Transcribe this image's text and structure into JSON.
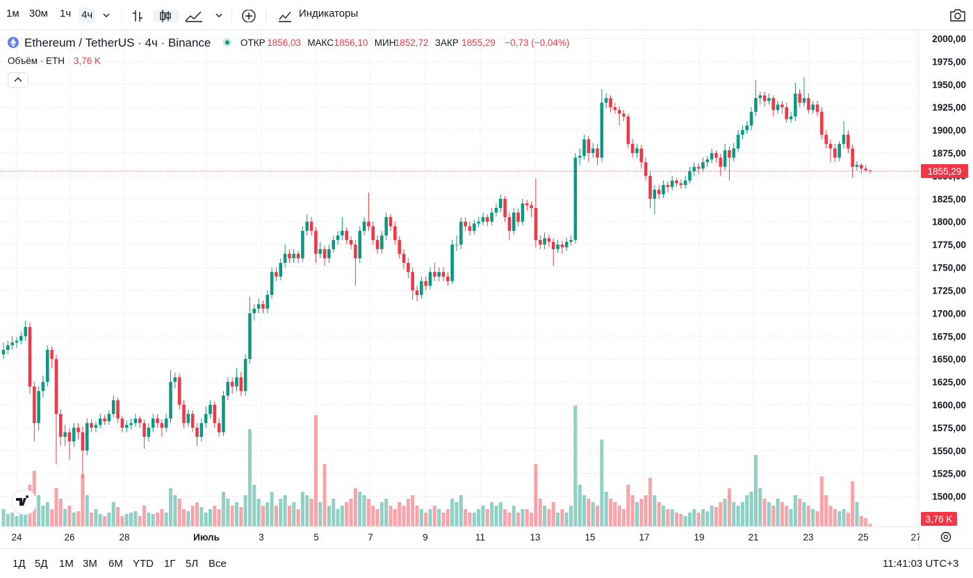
{
  "toolbar": {
    "intervals": [
      "1м",
      "30м",
      "1ч",
      "4ч"
    ],
    "indicators": "Индикаторы"
  },
  "legend": {
    "symbol": "Ethereum / TetherUS · 4ч · Binance",
    "ohlc": [
      {
        "label": "ОТКР",
        "value": "1856,03"
      },
      {
        "label": "МАКС",
        "value": "1856,10"
      },
      {
        "label": "МИН",
        "value": "1852,72"
      },
      {
        "label": "ЗАКР",
        "value": "1855,29"
      }
    ],
    "change": "−0,73 (−0,04%)",
    "volume_title": "Объём · ETH",
    "volume_value": "3,76 K"
  },
  "chart_data": {
    "type": "candlestick",
    "up_color": "#089981",
    "down_color": "#f23645",
    "grid": true,
    "ylim": [
      1467,
      2008
    ],
    "yticks": [
      {
        "value": 1500,
        "label": "1500,00"
      },
      {
        "value": 1525,
        "label": "1525,00"
      },
      {
        "value": 1550,
        "label": "1550,00"
      },
      {
        "value": 1575,
        "label": "1575,00"
      },
      {
        "value": 1600,
        "label": "1600,00"
      },
      {
        "value": 1625,
        "label": "1625,00"
      },
      {
        "value": 1650,
        "label": "1650,00"
      },
      {
        "value": 1675,
        "label": "1675,00"
      },
      {
        "value": 1700,
        "label": "1700,00"
      },
      {
        "value": 1725,
        "label": "1725,00"
      },
      {
        "value": 1750,
        "label": "1750,00"
      },
      {
        "value": 1775,
        "label": "1775,00"
      },
      {
        "value": 1800,
        "label": "1800,00"
      },
      {
        "value": 1825,
        "label": "1825,00"
      },
      {
        "value": 1850,
        "label": "1850,00"
      },
      {
        "value": 1875,
        "label": "1875,00"
      },
      {
        "value": 1900,
        "label": "1900,00"
      },
      {
        "value": 1925,
        "label": "1925,00"
      },
      {
        "value": 1950,
        "label": "1950,00"
      },
      {
        "value": 1975,
        "label": "1975,00"
      },
      {
        "value": 2000,
        "label": "2000,00"
      }
    ],
    "x_labels": [
      "24",
      "26",
      "28",
      "Июль",
      "3",
      "5",
      "7",
      "9",
      "11",
      "13",
      "15",
      "17",
      "19",
      "21",
      "23",
      "25",
      "27"
    ],
    "last_price_label": "1855,29",
    "volume_label": "3,76 K",
    "candles": [
      [
        1655,
        1668,
        1650,
        1660
      ],
      [
        1660,
        1670,
        1655,
        1665
      ],
      [
        1665,
        1675,
        1660,
        1668
      ],
      [
        1668,
        1674,
        1662,
        1670
      ],
      [
        1670,
        1680,
        1666,
        1675
      ],
      [
        1675,
        1692,
        1670,
        1685
      ],
      [
        1685,
        1690,
        1612,
        1620
      ],
      [
        1620,
        1625,
        1560,
        1580
      ],
      [
        1580,
        1620,
        1572,
        1615
      ],
      [
        1615,
        1632,
        1608,
        1625
      ],
      [
        1625,
        1665,
        1620,
        1660
      ],
      [
        1660,
        1664,
        1640,
        1650
      ],
      [
        1650,
        1655,
        1535,
        1590
      ],
      [
        1590,
        1595,
        1555,
        1565
      ],
      [
        1565,
        1578,
        1555,
        1570
      ],
      [
        1570,
        1574,
        1540,
        1560
      ],
      [
        1560,
        1580,
        1554,
        1575
      ],
      [
        1575,
        1580,
        1562,
        1570
      ],
      [
        1570,
        1576,
        1520,
        1550
      ],
      [
        1550,
        1585,
        1545,
        1580
      ],
      [
        1580,
        1584,
        1570,
        1575
      ],
      [
        1575,
        1582,
        1570,
        1578
      ],
      [
        1578,
        1590,
        1574,
        1585
      ],
      [
        1585,
        1589,
        1578,
        1582
      ],
      [
        1582,
        1594,
        1578,
        1590
      ],
      [
        1590,
        1610,
        1586,
        1605
      ],
      [
        1605,
        1608,
        1580,
        1585
      ],
      [
        1585,
        1588,
        1570,
        1575
      ],
      [
        1575,
        1583,
        1570,
        1578
      ],
      [
        1578,
        1585,
        1573,
        1580
      ],
      [
        1580,
        1590,
        1576,
        1585
      ],
      [
        1585,
        1588,
        1575,
        1580
      ],
      [
        1580,
        1584,
        1552,
        1565
      ],
      [
        1565,
        1580,
        1560,
        1575
      ],
      [
        1575,
        1590,
        1570,
        1585
      ],
      [
        1585,
        1590,
        1575,
        1580
      ],
      [
        1580,
        1584,
        1565,
        1575
      ],
      [
        1575,
        1590,
        1570,
        1585
      ],
      [
        1585,
        1638,
        1580,
        1625
      ],
      [
        1625,
        1635,
        1618,
        1630
      ],
      [
        1630,
        1634,
        1595,
        1600
      ],
      [
        1600,
        1605,
        1575,
        1580
      ],
      [
        1580,
        1595,
        1576,
        1590
      ],
      [
        1590,
        1594,
        1570,
        1575
      ],
      [
        1575,
        1580,
        1555,
        1565
      ],
      [
        1565,
        1585,
        1560,
        1580
      ],
      [
        1580,
        1598,
        1575,
        1590
      ],
      [
        1590,
        1605,
        1585,
        1600
      ],
      [
        1600,
        1604,
        1575,
        1580
      ],
      [
        1580,
        1585,
        1565,
        1570
      ],
      [
        1570,
        1615,
        1566,
        1610
      ],
      [
        1610,
        1630,
        1605,
        1625
      ],
      [
        1625,
        1630,
        1612,
        1620
      ],
      [
        1620,
        1640,
        1615,
        1630
      ],
      [
        1630,
        1636,
        1610,
        1615
      ],
      [
        1615,
        1655,
        1610,
        1650
      ],
      [
        1650,
        1718,
        1645,
        1700
      ],
      [
        1700,
        1710,
        1692,
        1705
      ],
      [
        1705,
        1716,
        1700,
        1710
      ],
      [
        1710,
        1714,
        1700,
        1705
      ],
      [
        1705,
        1725,
        1700,
        1720
      ],
      [
        1720,
        1750,
        1716,
        1745
      ],
      [
        1745,
        1750,
        1735,
        1740
      ],
      [
        1740,
        1760,
        1736,
        1755
      ],
      [
        1755,
        1775,
        1750,
        1765
      ],
      [
        1765,
        1770,
        1755,
        1760
      ],
      [
        1760,
        1770,
        1755,
        1765
      ],
      [
        1765,
        1768,
        1755,
        1760
      ],
      [
        1760,
        1795,
        1756,
        1790
      ],
      [
        1790,
        1808,
        1785,
        1800
      ],
      [
        1800,
        1805,
        1785,
        1790
      ],
      [
        1790,
        1794,
        1755,
        1765
      ],
      [
        1765,
        1778,
        1760,
        1770
      ],
      [
        1770,
        1774,
        1752,
        1760
      ],
      [
        1760,
        1775,
        1755,
        1770
      ],
      [
        1770,
        1785,
        1766,
        1780
      ],
      [
        1780,
        1790,
        1775,
        1785
      ],
      [
        1785,
        1805,
        1780,
        1790
      ],
      [
        1790,
        1794,
        1775,
        1780
      ],
      [
        1780,
        1784,
        1770,
        1775
      ],
      [
        1775,
        1780,
        1730,
        1760
      ],
      [
        1760,
        1795,
        1755,
        1790
      ],
      [
        1790,
        1805,
        1785,
        1800
      ],
      [
        1800,
        1832,
        1790,
        1795
      ],
      [
        1795,
        1800,
        1775,
        1780
      ],
      [
        1780,
        1785,
        1765,
        1770
      ],
      [
        1770,
        1790,
        1765,
        1785
      ],
      [
        1785,
        1810,
        1780,
        1805
      ],
      [
        1805,
        1808,
        1790,
        1795
      ],
      [
        1795,
        1800,
        1775,
        1780
      ],
      [
        1780,
        1784,
        1760,
        1765
      ],
      [
        1765,
        1770,
        1748,
        1755
      ],
      [
        1755,
        1760,
        1738,
        1745
      ],
      [
        1745,
        1750,
        1715,
        1725
      ],
      [
        1725,
        1730,
        1713,
        1720
      ],
      [
        1720,
        1740,
        1716,
        1735
      ],
      [
        1735,
        1740,
        1725,
        1730
      ],
      [
        1730,
        1750,
        1726,
        1745
      ],
      [
        1745,
        1755,
        1735,
        1740
      ],
      [
        1740,
        1750,
        1735,
        1745
      ],
      [
        1745,
        1750,
        1735,
        1740
      ],
      [
        1740,
        1745,
        1730,
        1735
      ],
      [
        1735,
        1780,
        1732,
        1775
      ],
      [
        1775,
        1785,
        1768,
        1775
      ],
      [
        1775,
        1805,
        1770,
        1800
      ],
      [
        1800,
        1805,
        1790,
        1795
      ],
      [
        1795,
        1800,
        1785,
        1790
      ],
      [
        1790,
        1802,
        1786,
        1798
      ],
      [
        1798,
        1805,
        1794,
        1800
      ],
      [
        1800,
        1810,
        1796,
        1805
      ],
      [
        1805,
        1808,
        1795,
        1800
      ],
      [
        1800,
        1815,
        1796,
        1810
      ],
      [
        1810,
        1820,
        1806,
        1815
      ],
      [
        1815,
        1830,
        1810,
        1825
      ],
      [
        1825,
        1828,
        1800,
        1805
      ],
      [
        1805,
        1810,
        1780,
        1790
      ],
      [
        1790,
        1815,
        1786,
        1810
      ],
      [
        1810,
        1814,
        1795,
        1800
      ],
      [
        1800,
        1825,
        1796,
        1820
      ],
      [
        1820,
        1824,
        1812,
        1818
      ],
      [
        1818,
        1822,
        1805,
        1815
      ],
      [
        1815,
        1847,
        1772,
        1780
      ],
      [
        1780,
        1785,
        1770,
        1775
      ],
      [
        1775,
        1788,
        1770,
        1782
      ],
      [
        1782,
        1786,
        1772,
        1778
      ],
      [
        1778,
        1782,
        1752,
        1770
      ],
      [
        1770,
        1780,
        1766,
        1775
      ],
      [
        1775,
        1779,
        1765,
        1772
      ],
      [
        1772,
        1783,
        1768,
        1778
      ],
      [
        1778,
        1785,
        1774,
        1780
      ],
      [
        1780,
        1875,
        1776,
        1870
      ],
      [
        1870,
        1880,
        1862,
        1872
      ],
      [
        1872,
        1895,
        1868,
        1890
      ],
      [
        1890,
        1894,
        1865,
        1875
      ],
      [
        1875,
        1886,
        1870,
        1880
      ],
      [
        1880,
        1885,
        1862,
        1870
      ],
      [
        1870,
        1945,
        1865,
        1930
      ],
      [
        1930,
        1940,
        1924,
        1935
      ],
      [
        1935,
        1938,
        1920,
        1925
      ],
      [
        1925,
        1930,
        1918,
        1922
      ],
      [
        1922,
        1926,
        1905,
        1918
      ],
      [
        1918,
        1922,
        1910,
        1915
      ],
      [
        1915,
        1918,
        1880,
        1885
      ],
      [
        1885,
        1890,
        1870,
        1875
      ],
      [
        1875,
        1885,
        1870,
        1880
      ],
      [
        1880,
        1884,
        1858,
        1865
      ],
      [
        1865,
        1870,
        1845,
        1850
      ],
      [
        1850,
        1855,
        1815,
        1825
      ],
      [
        1825,
        1840,
        1808,
        1835
      ],
      [
        1835,
        1840,
        1825,
        1830
      ],
      [
        1830,
        1845,
        1826,
        1840
      ],
      [
        1840,
        1844,
        1832,
        1838
      ],
      [
        1838,
        1850,
        1834,
        1845
      ],
      [
        1845,
        1848,
        1838,
        1842
      ],
      [
        1842,
        1846,
        1836,
        1840
      ],
      [
        1840,
        1850,
        1836,
        1845
      ],
      [
        1845,
        1860,
        1842,
        1855
      ],
      [
        1855,
        1865,
        1850,
        1860
      ],
      [
        1860,
        1864,
        1852,
        1858
      ],
      [
        1858,
        1870,
        1854,
        1865
      ],
      [
        1865,
        1872,
        1860,
        1868
      ],
      [
        1868,
        1880,
        1864,
        1875
      ],
      [
        1875,
        1878,
        1865,
        1870
      ],
      [
        1870,
        1874,
        1850,
        1860
      ],
      [
        1860,
        1885,
        1856,
        1878
      ],
      [
        1878,
        1882,
        1845,
        1870
      ],
      [
        1870,
        1886,
        1866,
        1880
      ],
      [
        1880,
        1900,
        1876,
        1895
      ],
      [
        1895,
        1905,
        1890,
        1900
      ],
      [
        1900,
        1910,
        1896,
        1905
      ],
      [
        1905,
        1925,
        1900,
        1920
      ],
      [
        1920,
        1955,
        1915,
        1935
      ],
      [
        1935,
        1942,
        1928,
        1938
      ],
      [
        1938,
        1942,
        1926,
        1932
      ],
      [
        1932,
        1940,
        1928,
        1935
      ],
      [
        1935,
        1938,
        1915,
        1922
      ],
      [
        1922,
        1932,
        1918,
        1928
      ],
      [
        1928,
        1932,
        1918,
        1925
      ],
      [
        1925,
        1930,
        1908,
        1912
      ],
      [
        1912,
        1920,
        1908,
        1915
      ],
      [
        1915,
        1952,
        1910,
        1940
      ],
      [
        1940,
        1945,
        1925,
        1930
      ],
      [
        1930,
        1958,
        1926,
        1935
      ],
      [
        1935,
        1940,
        1918,
        1922
      ],
      [
        1922,
        1932,
        1918,
        1928
      ],
      [
        1928,
        1932,
        1915,
        1920
      ],
      [
        1920,
        1925,
        1890,
        1895
      ],
      [
        1895,
        1900,
        1880,
        1885
      ],
      [
        1885,
        1890,
        1865,
        1880
      ],
      [
        1880,
        1885,
        1865,
        1870
      ],
      [
        1870,
        1888,
        1866,
        1885
      ],
      [
        1885,
        1910,
        1880,
        1895
      ],
      [
        1895,
        1900,
        1875,
        1880
      ],
      [
        1880,
        1884,
        1848,
        1860
      ],
      [
        1860,
        1866,
        1856,
        1862
      ],
      [
        1862,
        1864,
        1852,
        1858
      ],
      [
        1858,
        1862,
        1854,
        1856.03
      ],
      [
        1856.03,
        1856.1,
        1852.72,
        1855.29
      ]
    ],
    "volume": [
      25,
      18,
      20,
      15,
      30,
      28,
      60,
      80,
      45,
      30,
      35,
      25,
      55,
      40,
      25,
      30,
      20,
      22,
      75,
      45,
      20,
      25,
      18,
      15,
      20,
      35,
      28,
      15,
      18,
      20,
      22,
      15,
      30,
      20,
      18,
      20,
      25,
      20,
      55,
      45,
      40,
      25,
      22,
      30,
      35,
      28,
      20,
      25,
      30,
      25,
      50,
      40,
      30,
      35,
      28,
      45,
      140,
      60,
      40,
      30,
      35,
      50,
      30,
      40,
      45,
      30,
      35,
      25,
      50,
      45,
      40,
      160,
      35,
      90,
      30,
      40,
      25,
      30,
      35,
      40,
      55,
      50,
      45,
      40,
      30,
      25,
      35,
      40,
      30,
      25,
      35,
      30,
      40,
      45,
      30,
      25,
      20,
      25,
      30,
      25,
      20,
      25,
      40,
      35,
      45,
      25,
      20,
      20,
      25,
      30,
      25,
      35,
      30,
      35,
      25,
      20,
      30,
      20,
      25,
      25,
      20,
      90,
      40,
      30,
      25,
      35,
      20,
      25,
      20,
      30,
      174,
      60,
      45,
      40,
      35,
      30,
      125,
      50,
      40,
      35,
      30,
      25,
      60,
      45,
      35,
      40,
      45,
      70,
      45,
      35,
      30,
      25,
      25,
      20,
      18,
      15,
      20,
      25,
      20,
      25,
      22,
      30,
      28,
      35,
      40,
      55,
      35,
      30,
      35,
      45,
      50,
      103,
      55,
      40,
      35,
      30,
      40,
      35,
      30,
      25,
      45,
      40,
      35,
      30,
      25,
      22,
      72,
      45,
      30,
      25,
      22,
      25,
      20,
      65,
      35,
      15,
      12,
      3.76
    ]
  },
  "footer": {
    "ranges": [
      "1Д",
      "5Д",
      "1М",
      "3М",
      "6М",
      "YTD",
      "1Г",
      "5Л",
      "Все"
    ],
    "clock": "11:41:03 UTC+3"
  }
}
